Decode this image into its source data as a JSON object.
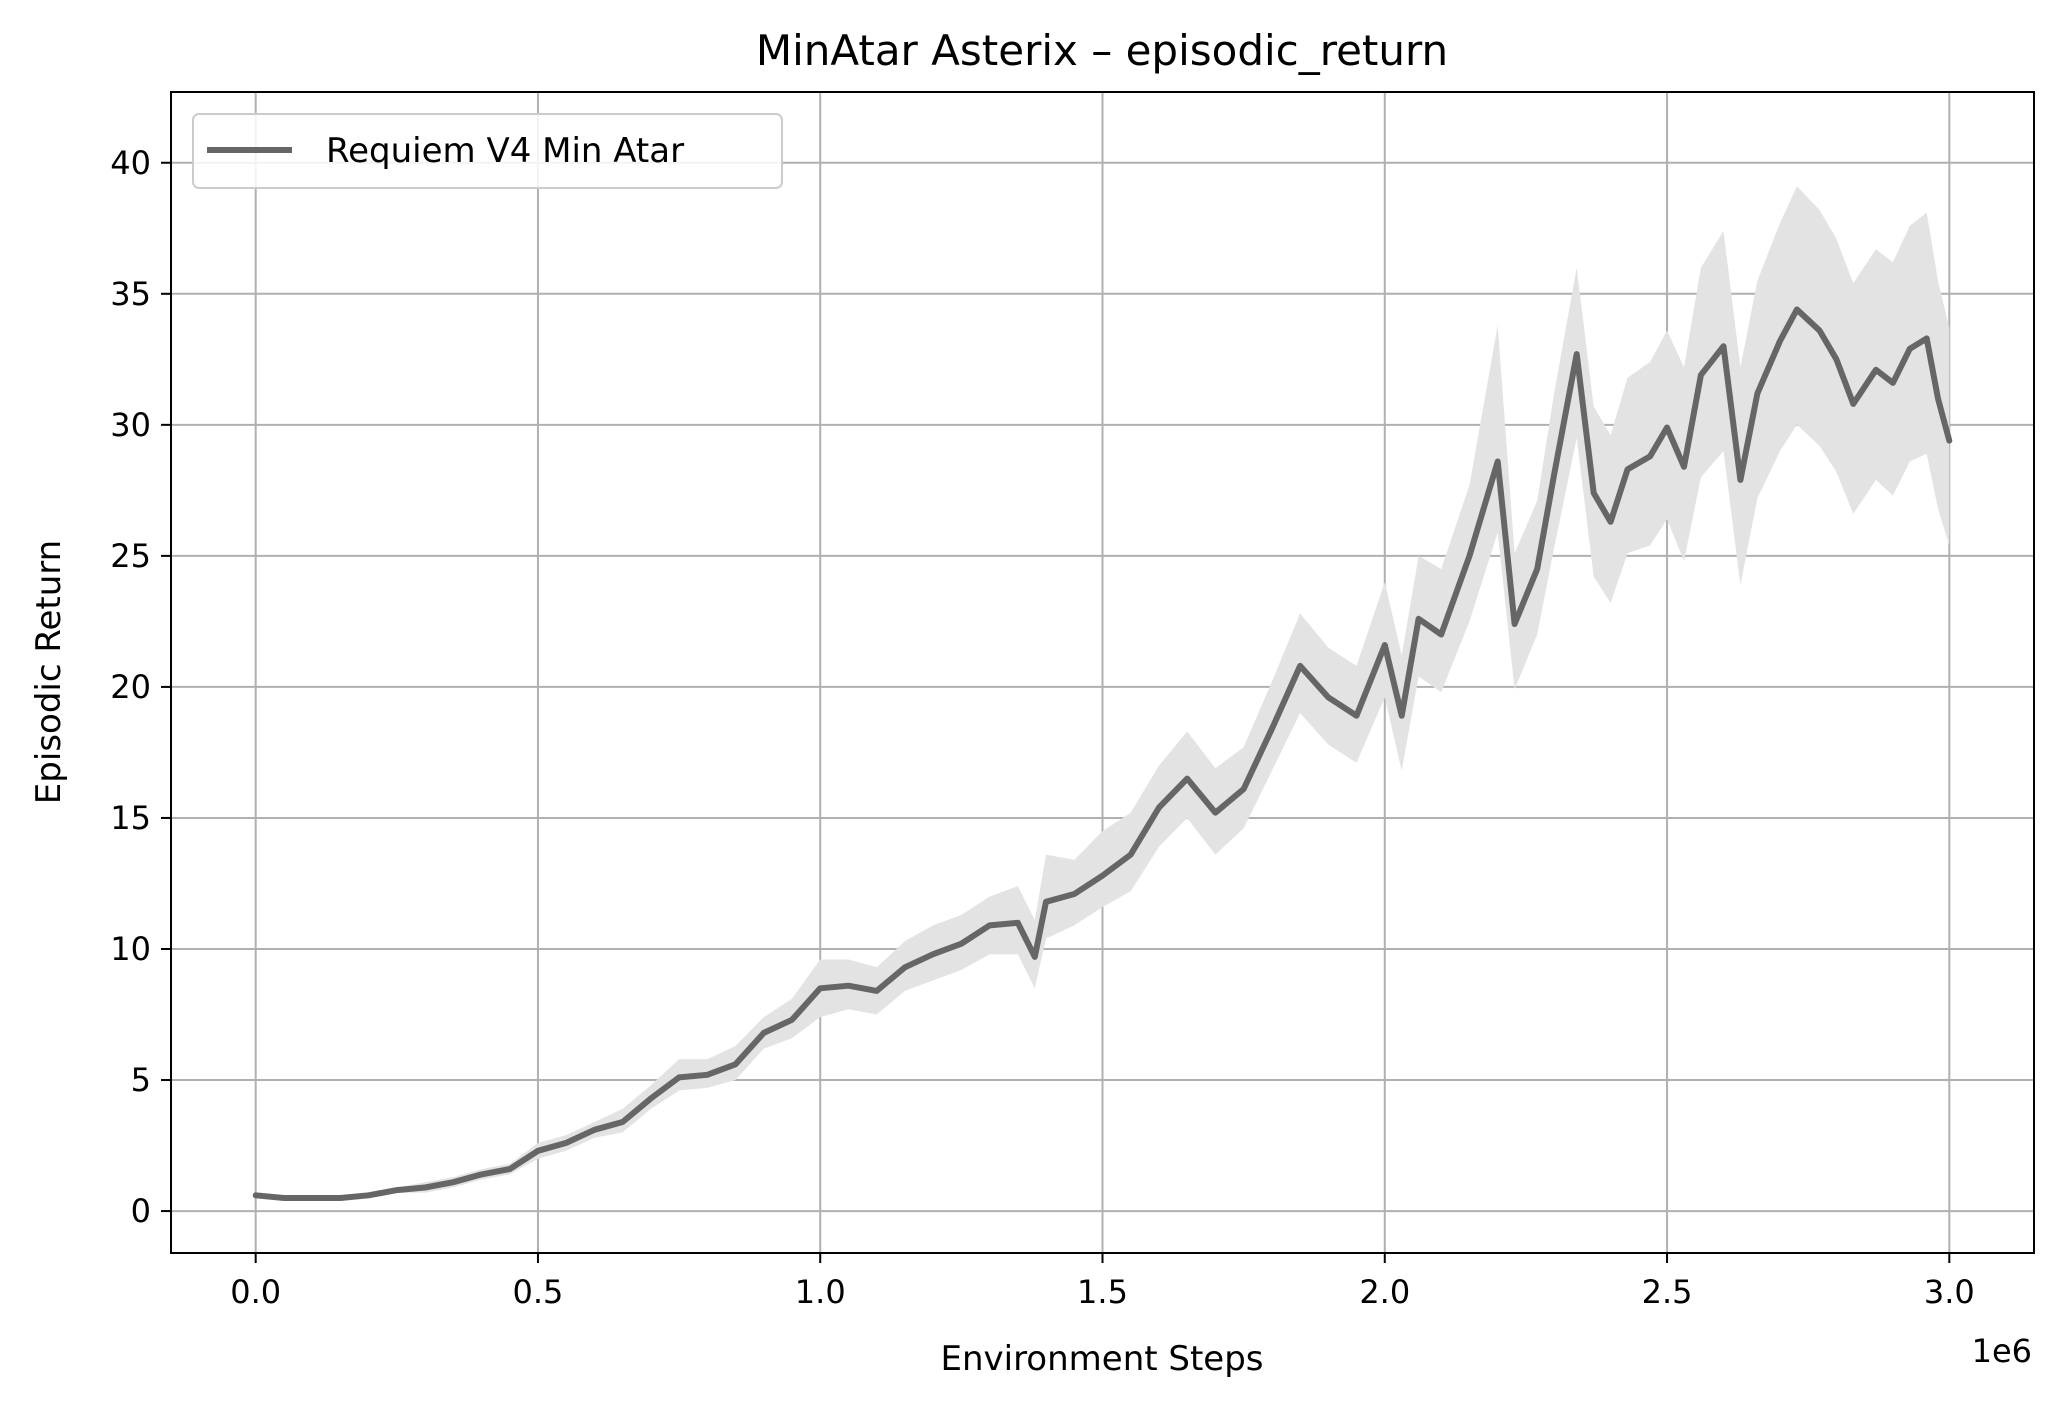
{
  "chart_data": {
    "type": "line",
    "title": "MinAtar Asterix – episodic_return",
    "xlabel": "Environment Steps",
    "ylabel": "Episodic Return",
    "x_offset_label": "1e6",
    "xlim": [
      -0.15,
      3.15
    ],
    "ylim": [
      -1.6,
      42.7
    ],
    "xticks": [
      0.0,
      0.5,
      1.0,
      1.5,
      2.0,
      2.5,
      3.0
    ],
    "xtick_labels": [
      "0.0",
      "0.5",
      "1.0",
      "1.5",
      "2.0",
      "2.5",
      "3.0"
    ],
    "yticks": [
      0,
      5,
      10,
      15,
      20,
      25,
      30,
      35,
      40
    ],
    "ytick_labels": [
      "0",
      "5",
      "10",
      "15",
      "20",
      "25",
      "30",
      "35",
      "40"
    ],
    "grid": true,
    "legend_position": "upper-left",
    "series": [
      {
        "name": "Requiem V4 Min Atar",
        "color": "#666666",
        "band_color": "#e3e3e3",
        "points": [
          [
            0.0,
            0.6,
            0.5,
            0.7
          ],
          [
            0.05,
            0.5,
            0.4,
            0.6
          ],
          [
            0.1,
            0.5,
            0.4,
            0.6
          ],
          [
            0.15,
            0.5,
            0.4,
            0.6
          ],
          [
            0.2,
            0.6,
            0.5,
            0.7
          ],
          [
            0.25,
            0.8,
            0.7,
            0.9
          ],
          [
            0.3,
            0.9,
            0.7,
            1.1
          ],
          [
            0.35,
            1.1,
            0.9,
            1.3
          ],
          [
            0.4,
            1.4,
            1.2,
            1.6
          ],
          [
            0.45,
            1.6,
            1.4,
            1.8
          ],
          [
            0.5,
            2.3,
            2.0,
            2.6
          ],
          [
            0.55,
            2.6,
            2.3,
            2.9
          ],
          [
            0.6,
            3.1,
            2.8,
            3.4
          ],
          [
            0.65,
            3.4,
            3.0,
            3.9
          ],
          [
            0.7,
            4.3,
            3.9,
            4.8
          ],
          [
            0.75,
            5.1,
            4.6,
            5.8
          ],
          [
            0.8,
            5.2,
            4.7,
            5.8
          ],
          [
            0.85,
            5.6,
            5.0,
            6.3
          ],
          [
            0.9,
            6.8,
            6.2,
            7.4
          ],
          [
            0.95,
            7.3,
            6.6,
            8.1
          ],
          [
            1.0,
            8.5,
            7.4,
            9.6
          ],
          [
            1.05,
            8.6,
            7.7,
            9.6
          ],
          [
            1.1,
            8.4,
            7.5,
            9.3
          ],
          [
            1.15,
            9.3,
            8.4,
            10.3
          ],
          [
            1.2,
            9.8,
            8.8,
            10.9
          ],
          [
            1.25,
            10.2,
            9.2,
            11.3
          ],
          [
            1.3,
            10.9,
            9.8,
            12.0
          ],
          [
            1.35,
            11.0,
            9.8,
            12.4
          ],
          [
            1.38,
            9.7,
            8.5,
            11.1
          ],
          [
            1.4,
            11.8,
            10.4,
            13.6
          ],
          [
            1.45,
            12.1,
            10.9,
            13.4
          ],
          [
            1.5,
            12.8,
            11.6,
            14.5
          ],
          [
            1.55,
            13.6,
            12.2,
            15.2
          ],
          [
            1.6,
            15.4,
            13.9,
            17.0
          ],
          [
            1.65,
            16.5,
            15.0,
            18.3
          ],
          [
            1.7,
            15.2,
            13.6,
            16.9
          ],
          [
            1.75,
            16.1,
            14.6,
            17.7
          ],
          [
            1.8,
            18.4,
            16.8,
            20.2
          ],
          [
            1.85,
            20.8,
            19.0,
            22.8
          ],
          [
            1.9,
            19.6,
            17.8,
            21.5
          ],
          [
            1.95,
            18.9,
            17.1,
            20.8
          ],
          [
            2.0,
            21.6,
            19.6,
            24.0
          ],
          [
            2.03,
            18.9,
            16.8,
            21.2
          ],
          [
            2.06,
            22.6,
            20.4,
            25.0
          ],
          [
            2.1,
            22.0,
            19.8,
            24.5
          ],
          [
            2.15,
            25.0,
            22.5,
            27.7
          ],
          [
            2.2,
            28.6,
            25.9,
            33.8
          ],
          [
            2.23,
            22.4,
            19.9,
            25.1
          ],
          [
            2.27,
            24.5,
            22.0,
            27.1
          ],
          [
            2.3,
            28.1,
            25.3,
            31.2
          ],
          [
            2.34,
            32.7,
            29.5,
            36.0
          ],
          [
            2.37,
            27.4,
            24.2,
            30.7
          ],
          [
            2.4,
            26.3,
            23.2,
            29.6
          ],
          [
            2.43,
            28.3,
            25.1,
            31.8
          ],
          [
            2.47,
            28.8,
            25.4,
            32.4
          ],
          [
            2.5,
            29.9,
            26.4,
            33.6
          ],
          [
            2.53,
            28.4,
            24.8,
            32.2
          ],
          [
            2.56,
            31.9,
            28.0,
            36.0
          ],
          [
            2.6,
            33.0,
            29.0,
            37.4
          ],
          [
            2.63,
            27.9,
            23.9,
            32.2
          ],
          [
            2.66,
            31.2,
            27.2,
            35.5
          ],
          [
            2.7,
            33.2,
            29.0,
            37.7
          ],
          [
            2.73,
            34.4,
            30.0,
            39.1
          ],
          [
            2.77,
            33.6,
            29.2,
            38.2
          ],
          [
            2.8,
            32.5,
            28.2,
            37.1
          ],
          [
            2.83,
            30.8,
            26.6,
            35.4
          ],
          [
            2.87,
            32.1,
            27.9,
            36.7
          ],
          [
            2.9,
            31.6,
            27.3,
            36.2
          ],
          [
            2.93,
            32.9,
            28.6,
            37.6
          ],
          [
            2.96,
            33.3,
            28.9,
            38.1
          ],
          [
            2.98,
            31.0,
            26.8,
            35.5
          ],
          [
            3.0,
            29.4,
            25.4,
            33.7
          ]
        ]
      }
    ]
  }
}
